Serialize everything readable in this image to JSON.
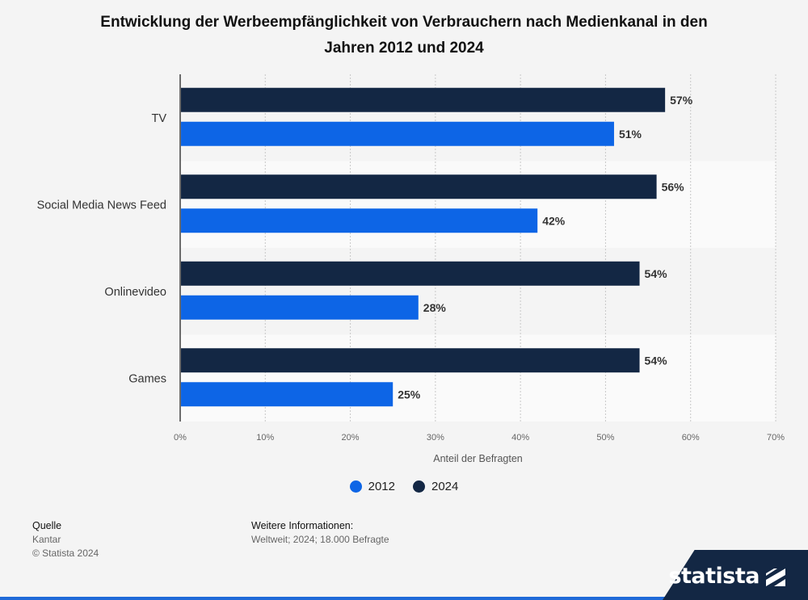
{
  "title": {
    "line1": "Entwicklung der Werbeempfänglichkeit von Verbrauchern nach Medienkanal in den",
    "line2": "Jahren 2012 und 2024"
  },
  "chart_data": {
    "type": "bar",
    "orientation": "horizontal",
    "categories": [
      "TV",
      "Social Media News Feed",
      "Onlinevideo",
      "Games"
    ],
    "series": [
      {
        "name": "2024",
        "color": "#132744",
        "values": [
          57,
          56,
          54,
          54
        ]
      },
      {
        "name": "2012",
        "color": "#0d65e6",
        "values": [
          51,
          42,
          28,
          25
        ]
      }
    ],
    "xlabel": "Anteil der Befragten",
    "xlim": [
      0,
      70
    ],
    "xticks": [
      0,
      10,
      20,
      30,
      40,
      50,
      60,
      70
    ],
    "tick_format": "{v}%",
    "value_suffix": "%",
    "grid": true,
    "legend": [
      {
        "name": "2012",
        "color": "#0d65e6"
      },
      {
        "name": "2024",
        "color": "#132744"
      }
    ]
  },
  "footer": {
    "source_head": "Quelle",
    "source_line1": "Kantar",
    "source_line2": "© Statista 2024",
    "info_head": "Weitere Informationen:",
    "info_line1": "Weltweit; 2024; 18.000 Befragte"
  },
  "brand": {
    "logo_text": "statista",
    "colors": {
      "dark": "#132744",
      "accent": "#1f6ad8"
    }
  }
}
